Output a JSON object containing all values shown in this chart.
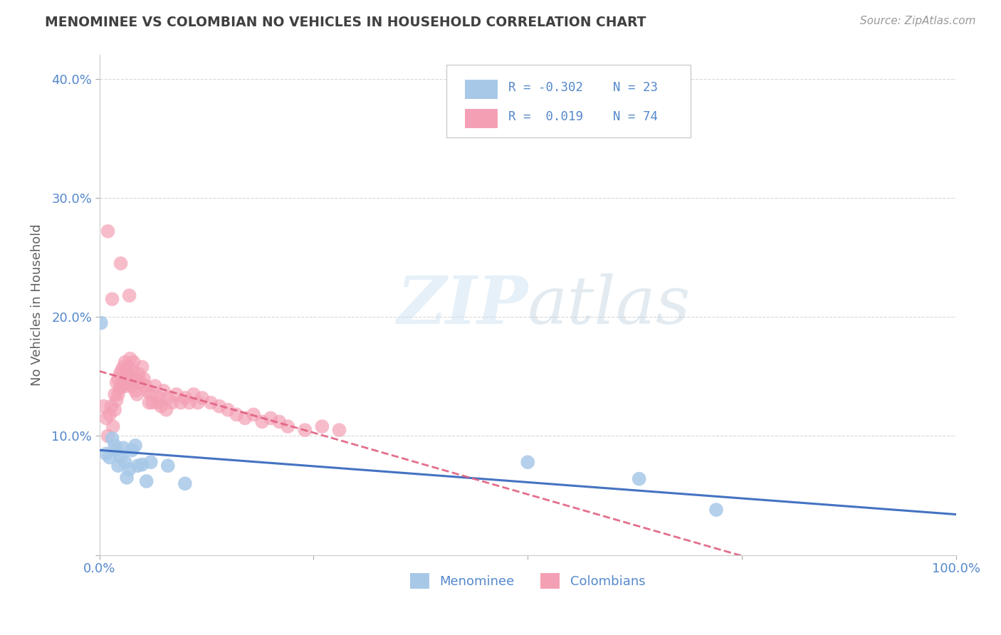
{
  "title": "MENOMINEE VS COLOMBIAN NO VEHICLES IN HOUSEHOLD CORRELATION CHART",
  "source": "Source: ZipAtlas.com",
  "ylabel": "No Vehicles in Household",
  "xlim": [
    0,
    1.0
  ],
  "ylim": [
    0,
    0.42
  ],
  "xticks": [
    0.0,
    0.25,
    0.5,
    0.75,
    1.0
  ],
  "xticklabels": [
    "0.0%",
    "",
    "",
    "",
    "100.0%"
  ],
  "yticks": [
    0.0,
    0.1,
    0.2,
    0.3,
    0.4
  ],
  "yticklabels": [
    "",
    "10.0%",
    "20.0%",
    "30.0%",
    "40.0%"
  ],
  "menominee_color": "#a8c8e8",
  "colombian_color": "#f4a0b4",
  "menominee_line_color": "#3a6bbf",
  "colombian_line_color": "#e06080",
  "r_menominee": -0.302,
  "n_menominee": 23,
  "r_colombian": 0.019,
  "n_colombian": 74,
  "background_color": "#ffffff",
  "grid_color": "#d0d0d0",
  "title_color": "#404040",
  "axis_label_color": "#606060",
  "tick_color": "#5588cc",
  "menominee_x": [
    0.002,
    0.008,
    0.012,
    0.015,
    0.018,
    0.02,
    0.022,
    0.025,
    0.028,
    0.03,
    0.032,
    0.035,
    0.038,
    0.042,
    0.045,
    0.05,
    0.055,
    0.06,
    0.08,
    0.1,
    0.5,
    0.63,
    0.72
  ],
  "menominee_y": [
    0.195,
    0.085,
    0.082,
    0.098,
    0.092,
    0.088,
    0.075,
    0.082,
    0.09,
    0.078,
    0.065,
    0.072,
    0.088,
    0.092,
    0.075,
    0.076,
    0.062,
    0.078,
    0.075,
    0.06,
    0.078,
    0.064,
    0.038
  ],
  "colombian_x": [
    0.005,
    0.008,
    0.01,
    0.012,
    0.014,
    0.016,
    0.018,
    0.018,
    0.02,
    0.02,
    0.022,
    0.022,
    0.024,
    0.024,
    0.026,
    0.026,
    0.028,
    0.028,
    0.03,
    0.03,
    0.032,
    0.032,
    0.034,
    0.034,
    0.036,
    0.036,
    0.038,
    0.038,
    0.04,
    0.04,
    0.042,
    0.044,
    0.044,
    0.046,
    0.048,
    0.05,
    0.052,
    0.054,
    0.056,
    0.058,
    0.06,
    0.062,
    0.065,
    0.068,
    0.07,
    0.072,
    0.075,
    0.078,
    0.08,
    0.085,
    0.09,
    0.095,
    0.1,
    0.105,
    0.11,
    0.115,
    0.12,
    0.13,
    0.14,
    0.15,
    0.16,
    0.17,
    0.18,
    0.19,
    0.2,
    0.21,
    0.22,
    0.24,
    0.26,
    0.28,
    0.01,
    0.015,
    0.025,
    0.035
  ],
  "colombian_y": [
    0.125,
    0.115,
    0.1,
    0.118,
    0.125,
    0.108,
    0.135,
    0.122,
    0.145,
    0.13,
    0.148,
    0.135,
    0.152,
    0.14,
    0.155,
    0.142,
    0.158,
    0.145,
    0.162,
    0.148,
    0.155,
    0.142,
    0.158,
    0.145,
    0.165,
    0.15,
    0.155,
    0.142,
    0.162,
    0.148,
    0.138,
    0.148,
    0.135,
    0.152,
    0.145,
    0.158,
    0.148,
    0.142,
    0.138,
    0.128,
    0.135,
    0.128,
    0.142,
    0.128,
    0.132,
    0.125,
    0.138,
    0.122,
    0.132,
    0.128,
    0.135,
    0.128,
    0.132,
    0.128,
    0.135,
    0.128,
    0.132,
    0.128,
    0.125,
    0.122,
    0.118,
    0.115,
    0.118,
    0.112,
    0.115,
    0.112,
    0.108,
    0.105,
    0.108,
    0.105,
    0.272,
    0.215,
    0.245,
    0.218
  ]
}
